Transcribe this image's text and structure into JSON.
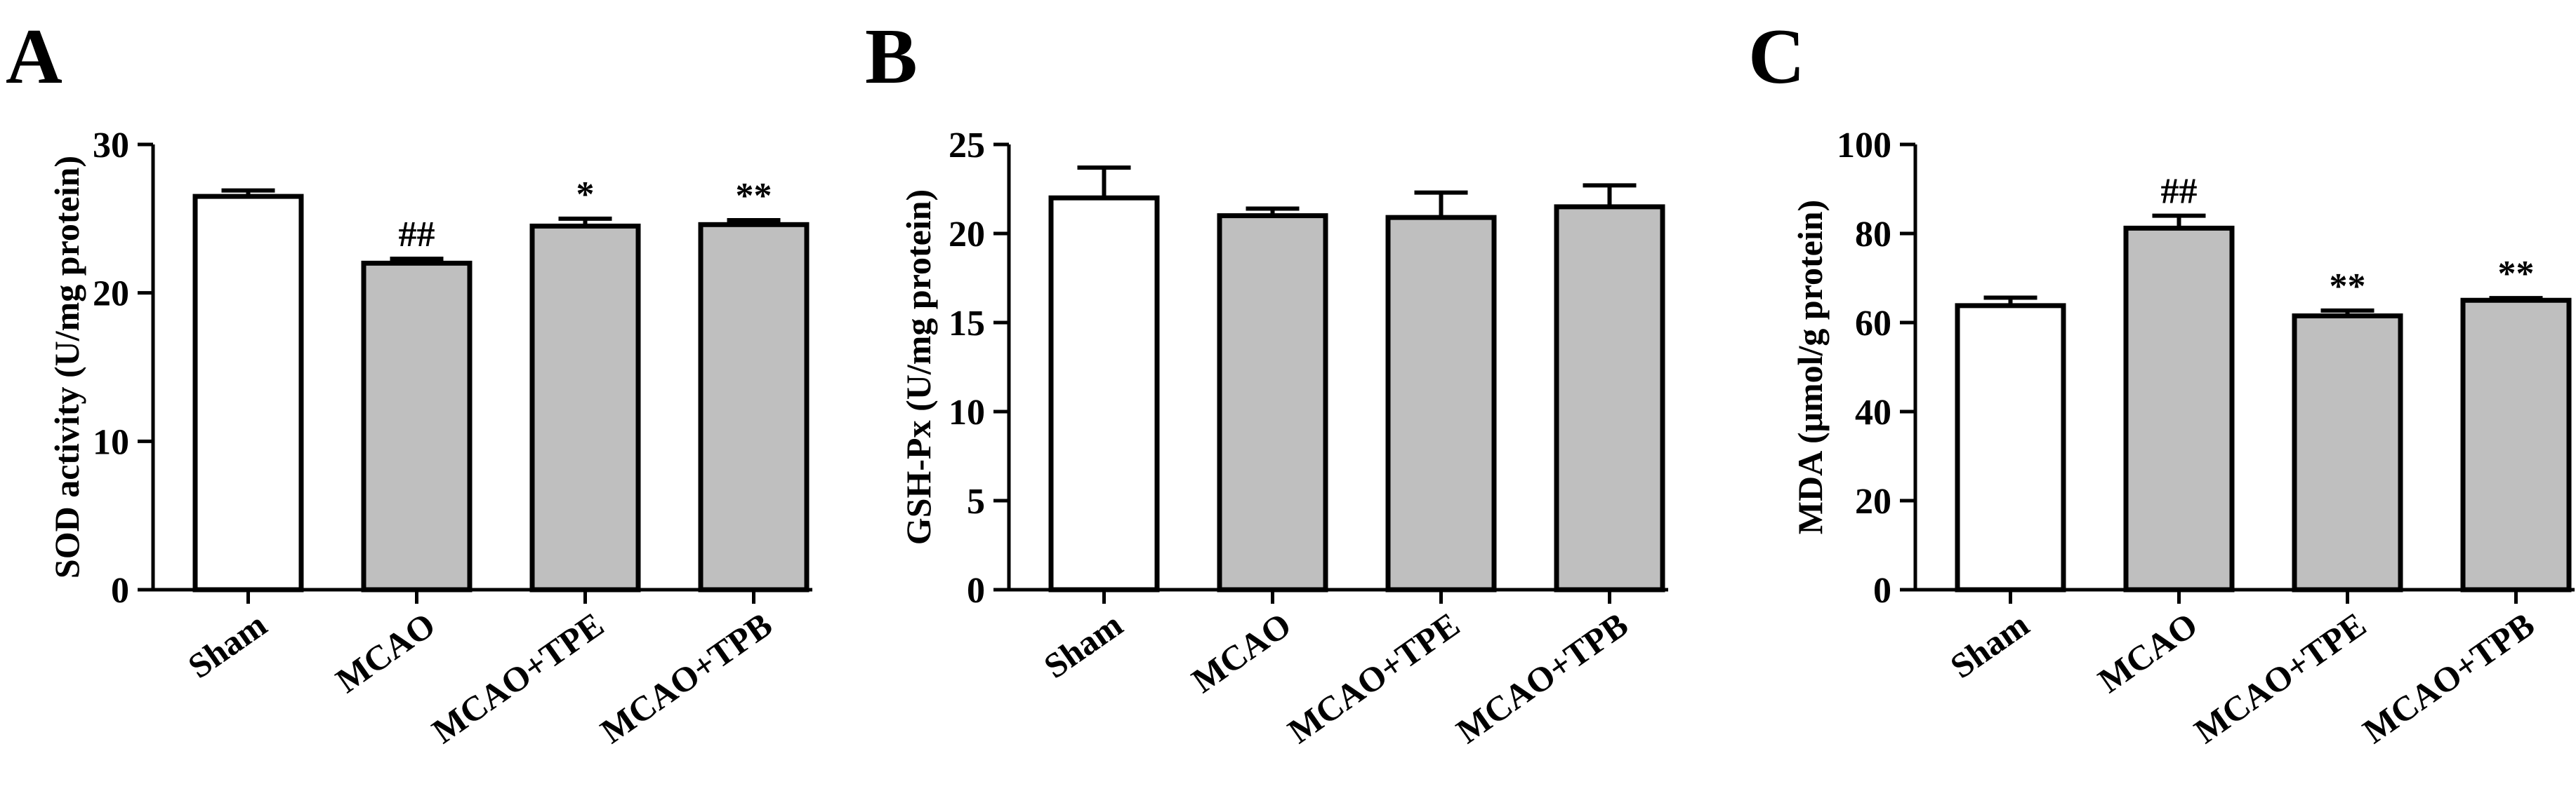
{
  "chart_data": [
    {
      "type": "bar",
      "panel": "A",
      "ylabel": "SOD activity (U/mg protein)",
      "ylim": [
        0,
        30
      ],
      "yticks": [
        0,
        10,
        20,
        30
      ],
      "categories": [
        "Sham",
        "MCAO",
        "MCAO+TPE",
        "MCAO+TPB"
      ],
      "values": [
        26.5,
        22.0,
        24.5,
        24.6
      ],
      "errors": [
        0.4,
        0.3,
        0.5,
        0.3
      ],
      "significance": [
        "",
        "##",
        "*",
        "**"
      ],
      "colors": [
        "#ffffff",
        "#bfbfbf",
        "#bfbfbf",
        "#bfbfbf"
      ]
    },
    {
      "type": "bar",
      "panel": "B",
      "ylabel": "GSH-Px (U/mg protein)",
      "ylim": [
        0,
        25
      ],
      "yticks": [
        0,
        5,
        10,
        15,
        20,
        25
      ],
      "categories": [
        "Sham",
        "MCAO",
        "MCAO+TPE",
        "MCAO+TPB"
      ],
      "values": [
        22.0,
        21.0,
        20.9,
        21.5
      ],
      "errors": [
        1.7,
        0.4,
        1.4,
        1.2
      ],
      "significance": [
        "",
        "",
        "",
        ""
      ],
      "colors": [
        "#ffffff",
        "#bfbfbf",
        "#bfbfbf",
        "#bfbfbf"
      ]
    },
    {
      "type": "bar",
      "panel": "C",
      "ylabel": "MDA (μmol/g protein)",
      "ylim": [
        0,
        100
      ],
      "yticks": [
        0,
        20,
        40,
        60,
        80,
        100
      ],
      "categories": [
        "Sham",
        "MCAO",
        "MCAO+TPE",
        "MCAO+TPB"
      ],
      "values": [
        63.8,
        81.2,
        61.5,
        65.0
      ],
      "errors": [
        1.8,
        2.8,
        1.2,
        0.5
      ],
      "significance": [
        "",
        "##",
        "**",
        "**"
      ],
      "colors": [
        "#ffffff",
        "#bfbfbf",
        "#bfbfbf",
        "#bfbfbf"
      ]
    }
  ]
}
